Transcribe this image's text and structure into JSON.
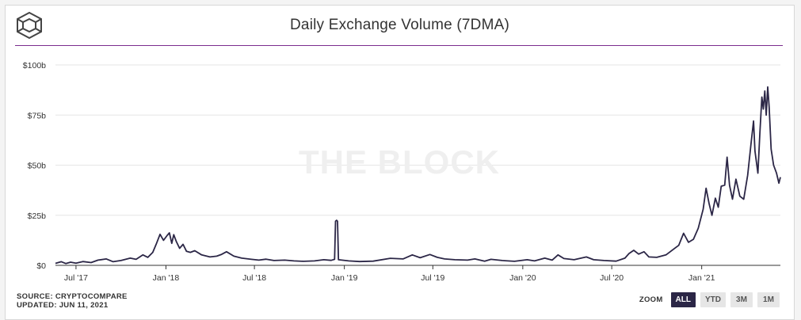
{
  "header": {
    "logo_icon": "the-block-cube-logo",
    "title": "Daily Exchange Volume (7DMA)",
    "accent_color": "#7b2d8e"
  },
  "watermark": "THE BLOCK",
  "footer": {
    "source": "SOURCE: CRYPTOCOMPARE",
    "updated": "UPDATED: JUN 11, 2021"
  },
  "zoom": {
    "label": "ZOOM",
    "options": [
      "ALL",
      "YTD",
      "3M",
      "1M"
    ],
    "active": "ALL"
  },
  "chart_data": {
    "type": "line",
    "title": "Daily Exchange Volume (7DMA)",
    "xlabel": "",
    "ylabel": "",
    "unit": "USD billions",
    "ylim": [
      0,
      100
    ],
    "xlim": [
      "2017-05-20",
      "2021-06-11"
    ],
    "yticks": [
      {
        "value": 0,
        "label": "$0"
      },
      {
        "value": 25,
        "label": "$25b"
      },
      {
        "value": 50,
        "label": "$50b"
      },
      {
        "value": 75,
        "label": "$75b"
      },
      {
        "value": 100,
        "label": "$100b"
      }
    ],
    "xticks": [
      {
        "date": "2017-07-01",
        "label": "Jul '17"
      },
      {
        "date": "2018-01-01",
        "label": "Jan '18"
      },
      {
        "date": "2018-07-01",
        "label": "Jul '18"
      },
      {
        "date": "2019-01-01",
        "label": "Jan '19"
      },
      {
        "date": "2019-07-01",
        "label": "Jul '19"
      },
      {
        "date": "2020-01-01",
        "label": "Jan '20"
      },
      {
        "date": "2020-07-01",
        "label": "Jul '20"
      },
      {
        "date": "2021-01-01",
        "label": "Jan '21"
      }
    ],
    "grid": true,
    "line_color": "#2b2646",
    "series": [
      {
        "points": [
          [
            "2017-05-20",
            1.0
          ],
          [
            "2017-06-01",
            1.8
          ],
          [
            "2017-06-10",
            0.9
          ],
          [
            "2017-06-20",
            1.6
          ],
          [
            "2017-07-01",
            1.1
          ],
          [
            "2017-07-15",
            1.9
          ],
          [
            "2017-08-01",
            1.4
          ],
          [
            "2017-08-15",
            2.6
          ],
          [
            "2017-09-01",
            3.2
          ],
          [
            "2017-09-15",
            1.8
          ],
          [
            "2017-10-01",
            2.4
          ],
          [
            "2017-10-20",
            3.6
          ],
          [
            "2017-11-01",
            3.0
          ],
          [
            "2017-11-15",
            5.2
          ],
          [
            "2017-11-25",
            4.0
          ],
          [
            "2017-12-05",
            6.5
          ],
          [
            "2017-12-12",
            10.5
          ],
          [
            "2017-12-20",
            15.5
          ],
          [
            "2017-12-27",
            12.5
          ],
          [
            "2018-01-03",
            14.8
          ],
          [
            "2018-01-08",
            16.2
          ],
          [
            "2018-01-13",
            11.0
          ],
          [
            "2018-01-17",
            15.3
          ],
          [
            "2018-01-22",
            12.0
          ],
          [
            "2018-01-29",
            8.5
          ],
          [
            "2018-02-05",
            10.5
          ],
          [
            "2018-02-12",
            7.0
          ],
          [
            "2018-02-20",
            6.5
          ],
          [
            "2018-03-01",
            7.3
          ],
          [
            "2018-03-15",
            5.2
          ],
          [
            "2018-04-01",
            4.2
          ],
          [
            "2018-04-15",
            4.6
          ],
          [
            "2018-04-25",
            5.5
          ],
          [
            "2018-05-05",
            6.8
          ],
          [
            "2018-05-20",
            4.6
          ],
          [
            "2018-06-05",
            3.6
          ],
          [
            "2018-06-25",
            3.0
          ],
          [
            "2018-07-10",
            2.6
          ],
          [
            "2018-07-25",
            3.1
          ],
          [
            "2018-08-10",
            2.4
          ],
          [
            "2018-09-01",
            2.6
          ],
          [
            "2018-09-20",
            2.2
          ],
          [
            "2018-10-10",
            2.0
          ],
          [
            "2018-11-01",
            2.2
          ],
          [
            "2018-11-20",
            2.8
          ],
          [
            "2018-12-05",
            2.5
          ],
          [
            "2018-12-12",
            3.0
          ],
          [
            "2018-12-14",
            22.0
          ],
          [
            "2018-12-16",
            22.5
          ],
          [
            "2018-12-18",
            22.0
          ],
          [
            "2018-12-20",
            2.8
          ],
          [
            "2019-01-10",
            2.2
          ],
          [
            "2019-02-01",
            1.9
          ],
          [
            "2019-03-01",
            2.1
          ],
          [
            "2019-04-05",
            3.5
          ],
          [
            "2019-05-01",
            3.2
          ],
          [
            "2019-05-20",
            5.2
          ],
          [
            "2019-06-05",
            3.8
          ],
          [
            "2019-06-25",
            5.4
          ],
          [
            "2019-07-10",
            4.0
          ],
          [
            "2019-07-25",
            3.2
          ],
          [
            "2019-08-15",
            2.8
          ],
          [
            "2019-09-10",
            2.6
          ],
          [
            "2019-09-25",
            3.2
          ],
          [
            "2019-10-15",
            2.1
          ],
          [
            "2019-10-28",
            3.0
          ],
          [
            "2019-11-20",
            2.4
          ],
          [
            "2019-12-15",
            2.0
          ],
          [
            "2020-01-10",
            2.8
          ],
          [
            "2020-01-25",
            2.2
          ],
          [
            "2020-02-15",
            3.6
          ],
          [
            "2020-03-01",
            2.6
          ],
          [
            "2020-03-13",
            5.2
          ],
          [
            "2020-03-25",
            3.4
          ],
          [
            "2020-04-15",
            2.8
          ],
          [
            "2020-05-10",
            4.2
          ],
          [
            "2020-05-25",
            2.8
          ],
          [
            "2020-06-15",
            2.4
          ],
          [
            "2020-07-10",
            2.1
          ],
          [
            "2020-07-28",
            3.6
          ],
          [
            "2020-08-05",
            5.8
          ],
          [
            "2020-08-15",
            7.5
          ],
          [
            "2020-08-25",
            5.6
          ],
          [
            "2020-09-05",
            6.8
          ],
          [
            "2020-09-15",
            4.2
          ],
          [
            "2020-10-01",
            4.0
          ],
          [
            "2020-10-20",
            5.2
          ],
          [
            "2020-11-05",
            8.2
          ],
          [
            "2020-11-15",
            10.0
          ],
          [
            "2020-11-25",
            16.0
          ],
          [
            "2020-12-05",
            11.5
          ],
          [
            "2020-12-15",
            13.0
          ],
          [
            "2020-12-25",
            18.5
          ],
          [
            "2021-01-04",
            28.0
          ],
          [
            "2021-01-10",
            38.5
          ],
          [
            "2021-01-16",
            31.0
          ],
          [
            "2021-01-22",
            25.0
          ],
          [
            "2021-01-29",
            33.5
          ],
          [
            "2021-02-04",
            29.0
          ],
          [
            "2021-02-10",
            39.5
          ],
          [
            "2021-02-17",
            40.0
          ],
          [
            "2021-02-22",
            54.0
          ],
          [
            "2021-02-27",
            40.0
          ],
          [
            "2021-03-05",
            33.0
          ],
          [
            "2021-03-12",
            43.0
          ],
          [
            "2021-03-20",
            34.5
          ],
          [
            "2021-03-28",
            33.0
          ],
          [
            "2021-04-05",
            45.0
          ],
          [
            "2021-04-12",
            61.0
          ],
          [
            "2021-04-17",
            72.0
          ],
          [
            "2021-04-20",
            57.0
          ],
          [
            "2021-04-26",
            46.0
          ],
          [
            "2021-04-30",
            66.0
          ],
          [
            "2021-05-04",
            84.0
          ],
          [
            "2021-05-07",
            78.0
          ],
          [
            "2021-05-10",
            87.0
          ],
          [
            "2021-05-13",
            75.0
          ],
          [
            "2021-05-16",
            89.0
          ],
          [
            "2021-05-19",
            79.0
          ],
          [
            "2021-05-23",
            58.0
          ],
          [
            "2021-05-28",
            50.0
          ],
          [
            "2021-06-03",
            46.0
          ],
          [
            "2021-06-08",
            41.0
          ],
          [
            "2021-06-11",
            44.0
          ]
        ]
      }
    ]
  }
}
